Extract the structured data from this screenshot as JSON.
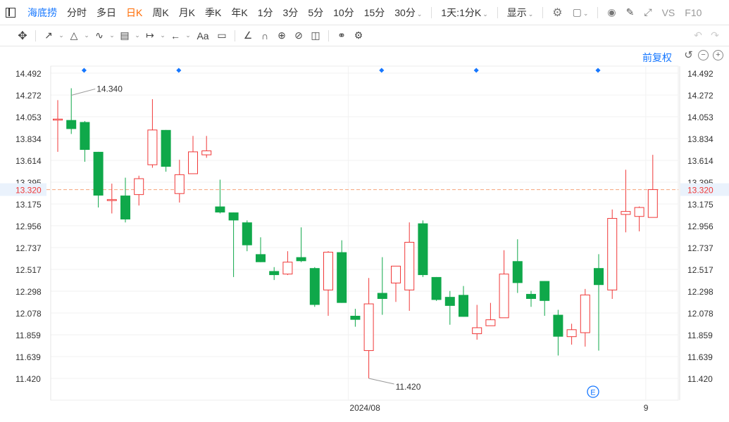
{
  "toolbar": {
    "items": [
      "海底捞",
      "分时",
      "多日",
      "日K",
      "周K",
      "月K",
      "季K",
      "年K",
      "1分",
      "3分",
      "5分",
      "10分",
      "15分",
      "30分",
      "1天:1分K",
      "显示"
    ],
    "vs_label": "VS",
    "f10_label": "F10"
  },
  "tools": {
    "font_label": "Aa"
  },
  "price_mode": "前复权",
  "colors": {
    "up": "#f03838",
    "down": "#0fa84a",
    "accent": "#1677ff",
    "last_line": "#f5a37a"
  },
  "chart_data": {
    "type": "candlestick",
    "y_ticks": [
      11.42,
      11.639,
      11.859,
      12.078,
      12.298,
      12.517,
      12.737,
      12.956,
      13.175,
      13.395,
      13.614,
      13.834,
      14.053,
      14.272,
      14.492
    ],
    "ylim": [
      11.42,
      14.492
    ],
    "x_labels": [
      {
        "label": "2024/08",
        "index": 22
      },
      {
        "label": "9",
        "index": 44
      }
    ],
    "last_price": "13.320",
    "annotations": [
      {
        "label": "14.340",
        "index": 1,
        "value": 14.34
      },
      {
        "label": "11.420",
        "index": 23,
        "value": 11.42
      }
    ],
    "markers": [
      2,
      9,
      24,
      31,
      40
    ],
    "event_marker": {
      "label": "E",
      "index": 40
    },
    "candles": [
      {
        "o": 14.03,
        "h": 14.22,
        "l": 13.7,
        "c": 14.03
      },
      {
        "o": 14.02,
        "h": 14.34,
        "l": 13.88,
        "c": 13.93
      },
      {
        "o": 14.0,
        "h": 14.01,
        "l": 13.6,
        "c": 13.72
      },
      {
        "o": 13.7,
        "h": 13.7,
        "l": 13.14,
        "c": 13.26
      },
      {
        "o": 13.22,
        "h": 13.38,
        "l": 13.08,
        "c": 13.22
      },
      {
        "o": 13.26,
        "h": 13.44,
        "l": 12.99,
        "c": 13.02
      },
      {
        "o": 13.27,
        "h": 13.46,
        "l": 13.16,
        "c": 13.43
      },
      {
        "o": 13.57,
        "h": 14.23,
        "l": 13.54,
        "c": 13.92
      },
      {
        "o": 13.92,
        "h": 13.92,
        "l": 13.5,
        "c": 13.55
      },
      {
        "o": 13.28,
        "h": 13.62,
        "l": 13.19,
        "c": 13.47
      },
      {
        "o": 13.48,
        "h": 13.86,
        "l": 13.48,
        "c": 13.7
      },
      {
        "o": 13.67,
        "h": 13.86,
        "l": 13.64,
        "c": 13.71
      },
      {
        "o": 13.15,
        "h": 13.42,
        "l": 13.08,
        "c": 13.09
      },
      {
        "o": 13.09,
        "h": 13.09,
        "l": 12.44,
        "c": 13.01
      },
      {
        "o": 12.99,
        "h": 13.01,
        "l": 12.7,
        "c": 12.76
      },
      {
        "o": 12.67,
        "h": 12.84,
        "l": 12.59,
        "c": 12.59
      },
      {
        "o": 12.5,
        "h": 12.54,
        "l": 12.41,
        "c": 12.46
      },
      {
        "o": 12.47,
        "h": 12.7,
        "l": 12.46,
        "c": 12.59
      },
      {
        "o": 12.64,
        "h": 12.94,
        "l": 12.59,
        "c": 12.6
      },
      {
        "o": 12.53,
        "h": 12.54,
        "l": 12.14,
        "c": 12.16
      },
      {
        "o": 12.31,
        "h": 12.7,
        "l": 12.05,
        "c": 12.69
      },
      {
        "o": 12.69,
        "h": 12.81,
        "l": 12.18,
        "c": 12.18
      },
      {
        "o": 12.05,
        "h": 12.12,
        "l": 11.94,
        "c": 12.01
      },
      {
        "o": 11.7,
        "h": 12.43,
        "l": 11.42,
        "c": 12.17
      },
      {
        "o": 12.28,
        "h": 12.64,
        "l": 12.06,
        "c": 12.22
      },
      {
        "o": 12.38,
        "h": 12.55,
        "l": 12.19,
        "c": 12.55
      },
      {
        "o": 12.31,
        "h": 12.99,
        "l": 12.1,
        "c": 12.79
      },
      {
        "o": 12.98,
        "h": 13.01,
        "l": 12.44,
        "c": 12.46
      },
      {
        "o": 12.44,
        "h": 12.44,
        "l": 12.2,
        "c": 12.21
      },
      {
        "o": 12.24,
        "h": 12.3,
        "l": 11.96,
        "c": 12.15
      },
      {
        "o": 12.26,
        "h": 12.35,
        "l": 12.04,
        "c": 12.04
      },
      {
        "o": 11.87,
        "h": 12.16,
        "l": 11.81,
        "c": 11.93
      },
      {
        "o": 11.95,
        "h": 12.18,
        "l": 11.95,
        "c": 12.01
      },
      {
        "o": 12.03,
        "h": 12.71,
        "l": 12.03,
        "c": 12.47
      },
      {
        "o": 12.6,
        "h": 12.82,
        "l": 12.28,
        "c": 12.38
      },
      {
        "o": 12.27,
        "h": 12.3,
        "l": 12.14,
        "c": 12.22
      },
      {
        "o": 12.4,
        "h": 12.4,
        "l": 12.05,
        "c": 12.2
      },
      {
        "o": 12.06,
        "h": 12.11,
        "l": 11.65,
        "c": 11.84
      },
      {
        "o": 11.84,
        "h": 11.97,
        "l": 11.76,
        "c": 11.91
      },
      {
        "o": 11.88,
        "h": 12.32,
        "l": 11.74,
        "c": 12.26
      },
      {
        "o": 12.53,
        "h": 12.67,
        "l": 11.7,
        "c": 12.36
      },
      {
        "o": 12.31,
        "h": 13.12,
        "l": 12.22,
        "c": 13.03
      },
      {
        "o": 13.07,
        "h": 13.52,
        "l": 12.89,
        "c": 13.1
      },
      {
        "o": 13.05,
        "h": 13.15,
        "l": 12.9,
        "c": 13.14
      },
      {
        "o": 13.04,
        "h": 13.67,
        "l": 13.04,
        "c": 13.32
      }
    ]
  }
}
